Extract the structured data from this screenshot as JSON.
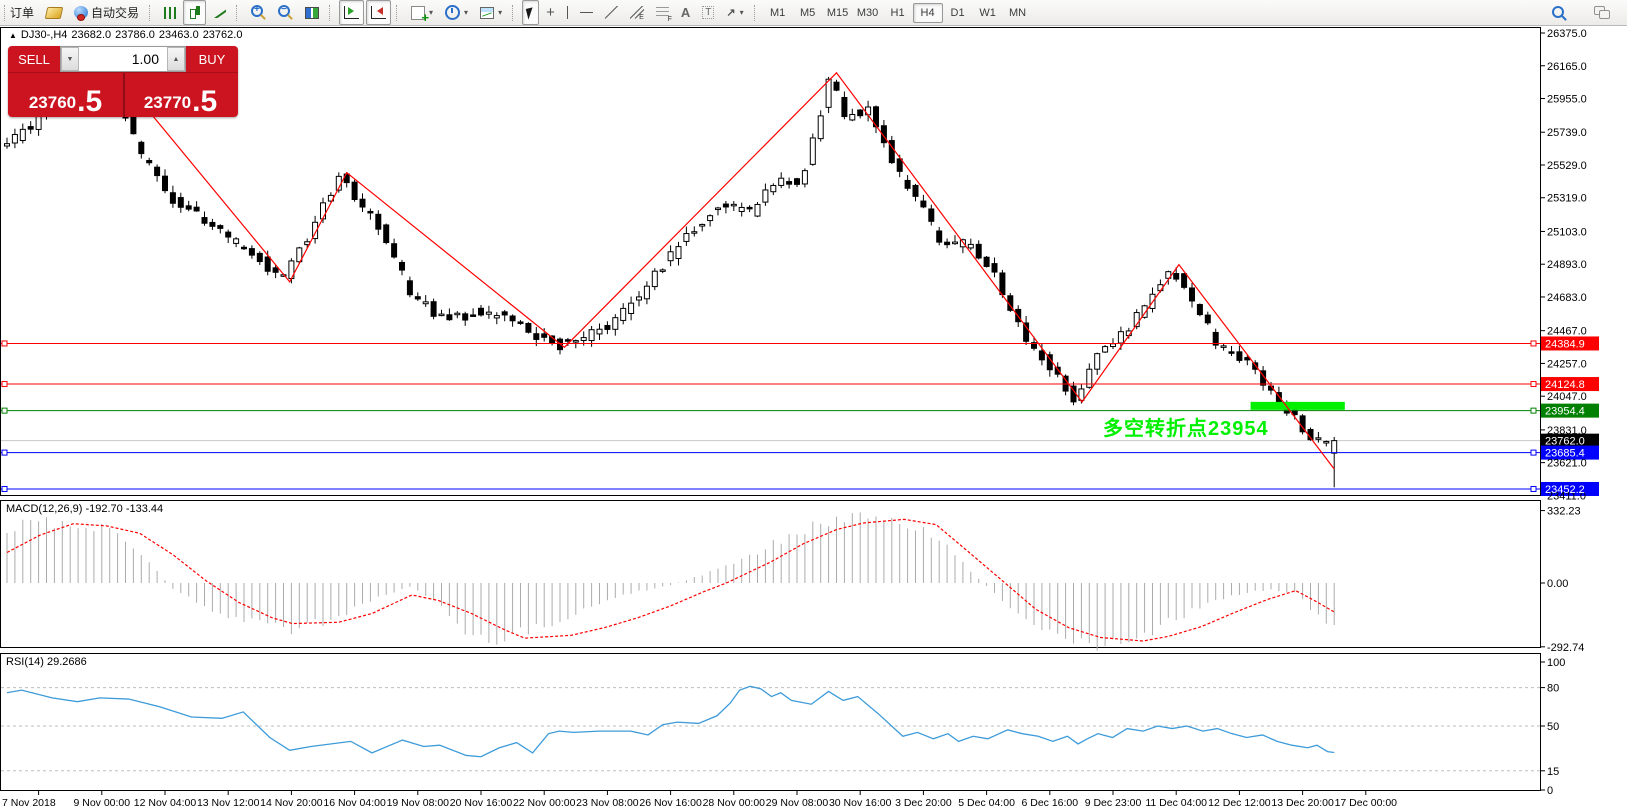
{
  "toolbar": {
    "groups": [
      {
        "name": "file-group",
        "items": [
          {
            "name": "new-order-button",
            "label": "订单",
            "cut": true
          },
          {
            "name": "market-watch-button",
            "glyph": "gold"
          },
          {
            "name": "auto-trading-button",
            "glyph": "robot",
            "label": "自动交易"
          }
        ]
      },
      {
        "name": "chart-type-group",
        "items": [
          {
            "name": "bar-chart-button",
            "glyph": "bars"
          },
          {
            "name": "candlestick-button",
            "glyph": "candles",
            "active": true
          },
          {
            "name": "line-chart-button",
            "glyph": "linechart"
          }
        ]
      },
      {
        "name": "zoom-group",
        "items": [
          {
            "name": "zoom-in-button",
            "glyph": "zoomin"
          },
          {
            "name": "zoom-out-button",
            "glyph": "zoomout"
          },
          {
            "name": "tile-windows-button",
            "glyph": "tiles"
          }
        ]
      },
      {
        "name": "scroll-group",
        "items": [
          {
            "name": "auto-scroll-button",
            "glyph": "autoscroll",
            "active": true
          },
          {
            "name": "chart-shift-button",
            "glyph": "chartshift",
            "active": true
          }
        ]
      },
      {
        "name": "insert-group",
        "items": [
          {
            "name": "indicators-button",
            "glyph": "indicators",
            "dropdown": true
          },
          {
            "name": "periods-button",
            "glyph": "clock",
            "dropdown": true
          },
          {
            "name": "templates-button",
            "glyph": "template",
            "dropdown": true
          }
        ]
      },
      {
        "name": "draw-group",
        "items": [
          {
            "name": "cursor-button",
            "glyph": "cursor",
            "active": true
          },
          {
            "name": "crosshair-button",
            "glyph": "crosshair"
          },
          {
            "name": "vertical-line-button",
            "glyph": "vline"
          },
          {
            "name": "horizontal-line-button",
            "glyph": "hline"
          },
          {
            "name": "trendline-button",
            "glyph": "trend"
          },
          {
            "name": "channel-button",
            "glyph": "channel"
          },
          {
            "name": "fibonacci-button",
            "glyph": "fibo"
          },
          {
            "name": "text-button",
            "glyph": "texta"
          },
          {
            "name": "text-label-button",
            "glyph": "label"
          },
          {
            "name": "arrows-button",
            "glyph": "arrows",
            "dropdown": true
          }
        ]
      },
      {
        "name": "timeframe-group",
        "items": [
          {
            "name": "timeframe-m1",
            "label": "M1",
            "tf": true
          },
          {
            "name": "timeframe-m5",
            "label": "M5",
            "tf": true
          },
          {
            "name": "timeframe-m15",
            "label": "M15",
            "tf": true
          },
          {
            "name": "timeframe-m30",
            "label": "M30",
            "tf": true
          },
          {
            "name": "timeframe-h1",
            "label": "H1",
            "tf": true
          },
          {
            "name": "timeframe-h4",
            "label": "H4",
            "tf": true,
            "active": true
          },
          {
            "name": "timeframe-d1",
            "label": "D1",
            "tf": true
          },
          {
            "name": "timeframe-w1",
            "label": "W1",
            "tf": true
          },
          {
            "name": "timeframe-mn",
            "label": "MN",
            "tf": true
          }
        ]
      }
    ],
    "right_items": [
      {
        "name": "search-button",
        "glyph": "search"
      },
      {
        "name": "community-button",
        "glyph": "chat"
      }
    ]
  },
  "one_click_panel": {
    "sell_label": "SELL",
    "buy_label": "BUY",
    "volume": "1.00",
    "sell_price_main": "23760",
    "sell_price_pip": ".5",
    "buy_price_main": "23770",
    "buy_price_pip": ".5",
    "accent_color": "#cb141f"
  },
  "chart_header": {
    "collapse_icon": "▲",
    "symbol_period": "DJ30-,H4",
    "open": "23682.0",
    "high": "23786.0",
    "low": "23463.0",
    "close": "23762.0"
  },
  "indicator_labels": {
    "macd": "MACD(12,26,9) -192.70 -133.44",
    "rsi": "RSI(14) 29.2686"
  },
  "annotation": {
    "text": "多空转折点23954",
    "color": "#00f000"
  },
  "chart_data": {
    "type": "candlestick",
    "symbol": "DJ30-",
    "period": "H4",
    "current_ohlc": {
      "open": 23682.0,
      "high": 23786.0,
      "low": 23463.0,
      "close": 23762.0
    },
    "price_axis": {
      "ticks": [
        26375.0,
        26165.0,
        25955.0,
        25739.0,
        25529.0,
        25319.0,
        25103.0,
        24893.0,
        24683.0,
        24467.0,
        24257.0,
        24047.0,
        23831.0,
        23621.0,
        23411.0
      ],
      "min": 23400,
      "max": 26420
    },
    "time_axis": [
      "7 Nov 2018",
      "9 Nov 00:00",
      "12 Nov 04:00",
      "13 Nov 12:00",
      "14 Nov 20:00",
      "16 Nov 04:00",
      "19 Nov 08:00",
      "20 Nov 16:00",
      "22 Nov 00:00",
      "23 Nov 08:00",
      "26 Nov 16:00",
      "28 Nov 00:00",
      "29 Nov 08:00",
      "30 Nov 16:00",
      "3 Dec 20:00",
      "5 Dec 04:00",
      "6 Dec 16:00",
      "9 Dec 23:00",
      "11 Dec 04:00",
      "12 Dec 12:00",
      "13 Dec 20:00",
      "17 Dec 00:00"
    ],
    "levels": [
      {
        "price": 24384.9,
        "label": "24384.9",
        "color": "#ff0000"
      },
      {
        "price": 24124.8,
        "label": "24124.8",
        "color": "#ff0000"
      },
      {
        "price": 23954.4,
        "label": "23954.4",
        "color": "#008000"
      },
      {
        "price": 23762.0,
        "label": "23762.0",
        "color": "#000000",
        "line_color": "#c8c8c8",
        "bid": true
      },
      {
        "price": 23685.4,
        "label": "23685.4",
        "color": "#0000ff"
      },
      {
        "price": 23452.2,
        "label": "23452.2",
        "color": "#0000ff"
      }
    ],
    "highlight_bar": {
      "f1": 0.937,
      "f2": 1.008,
      "y_price": 23985,
      "thickness_px": 8,
      "color": "#00f000"
    },
    "zigzag": {
      "color": "#ff0000",
      "pivots": [
        [
          0.084,
          26110
        ],
        [
          0.213,
          24780
        ],
        [
          0.256,
          25480
        ],
        [
          0.42,
          24360
        ],
        [
          0.625,
          26120
        ],
        [
          0.81,
          24010
        ],
        [
          0.883,
          24890
        ],
        [
          1,
          23580
        ]
      ]
    },
    "price_path": [
      [
        0,
        25640
      ],
      [
        0.03,
        25830
      ],
      [
        0.084,
        26100
      ],
      [
        0.105,
        25620
      ],
      [
        0.125,
        25340
      ],
      [
        0.155,
        25160
      ],
      [
        0.185,
        24990
      ],
      [
        0.213,
        24790
      ],
      [
        0.232,
        25070
      ],
      [
        0.256,
        25470
      ],
      [
        0.285,
        25130
      ],
      [
        0.31,
        24700
      ],
      [
        0.335,
        24540
      ],
      [
        0.365,
        24590
      ],
      [
        0.395,
        24480
      ],
      [
        0.42,
        24370
      ],
      [
        0.445,
        24440
      ],
      [
        0.465,
        24540
      ],
      [
        0.49,
        24780
      ],
      [
        0.515,
        25050
      ],
      [
        0.545,
        25290
      ],
      [
        0.565,
        25220
      ],
      [
        0.585,
        25450
      ],
      [
        0.605,
        25430
      ],
      [
        0.625,
        26090
      ],
      [
        0.638,
        25830
      ],
      [
        0.655,
        25890
      ],
      [
        0.675,
        25490
      ],
      [
        0.695,
        25270
      ],
      [
        0.71,
        24990
      ],
      [
        0.725,
        25040
      ],
      [
        0.745,
        24900
      ],
      [
        0.765,
        24530
      ],
      [
        0.785,
        24290
      ],
      [
        0.81,
        24030
      ],
      [
        0.83,
        24340
      ],
      [
        0.85,
        24490
      ],
      [
        0.868,
        24690
      ],
      [
        0.883,
        24870
      ],
      [
        0.9,
        24650
      ],
      [
        0.92,
        24340
      ],
      [
        0.94,
        24250
      ],
      [
        0.957,
        24090
      ],
      [
        0.972,
        23950
      ],
      [
        0.985,
        23790
      ],
      [
        1,
        23720
      ]
    ],
    "candles": {
      "count": 169,
      "seed": 11,
      "bull_color": "#ffffff",
      "bear_color": "#000000"
    },
    "macd": {
      "name": "MACD",
      "params": "12,26,9",
      "value": -192.7,
      "signal_value": -133.44,
      "axis_ticks": [
        332.23,
        0.0,
        -292.74
      ],
      "histogram_color": "#ababab",
      "signal_color": "#ff0000",
      "samples": [
        [
          0,
          250,
          140
        ],
        [
          0.025,
          283,
          220
        ],
        [
          0.05,
          282,
          272
        ],
        [
          0.075,
          245,
          262
        ],
        [
          0.1,
          150,
          228
        ],
        [
          0.125,
          -30,
          130
        ],
        [
          0.15,
          -110,
          10
        ],
        [
          0.175,
          -170,
          -90
        ],
        [
          0.2,
          -205,
          -160
        ],
        [
          0.215,
          -210,
          -186
        ],
        [
          0.25,
          -160,
          -180
        ],
        [
          0.275,
          -80,
          -140
        ],
        [
          0.305,
          -15,
          -55
        ],
        [
          0.325,
          -90,
          -80
        ],
        [
          0.35,
          -272,
          -140
        ],
        [
          0.375,
          -250,
          -215
        ],
        [
          0.39,
          -220,
          -253
        ],
        [
          0.425,
          -150,
          -240
        ],
        [
          0.45,
          -80,
          -205
        ],
        [
          0.475,
          -40,
          -160
        ],
        [
          0.5,
          -10,
          -105
        ],
        [
          0.525,
          40,
          -40
        ],
        [
          0.542,
          80,
          0
        ],
        [
          0.575,
          170,
          95
        ],
        [
          0.6,
          240,
          180
        ],
        [
          0.625,
          300,
          245
        ],
        [
          0.645,
          332,
          275
        ],
        [
          0.676,
          290,
          292
        ],
        [
          0.7,
          215,
          268
        ],
        [
          0.725,
          60,
          140
        ],
        [
          0.752,
          -90,
          0
        ],
        [
          0.775,
          -190,
          -120
        ],
        [
          0.8,
          -255,
          -205
        ],
        [
          0.824,
          -283,
          -250
        ],
        [
          0.856,
          -240,
          -266
        ],
        [
          0.875,
          -180,
          -245
        ],
        [
          0.9,
          -110,
          -200
        ],
        [
          0.925,
          -55,
          -135
        ],
        [
          0.95,
          -30,
          -75
        ],
        [
          0.971,
          -45,
          -35
        ],
        [
          0.985,
          -140,
          -80
        ],
        [
          1,
          -193,
          -133
        ]
      ]
    },
    "rsi": {
      "name": "RSI",
      "params": "14",
      "value": 29.2686,
      "axis_ticks": [
        100,
        80,
        50,
        15,
        0
      ],
      "level_lines": [
        80,
        50,
        15
      ],
      "line_color": "#3d9bd9",
      "level_color": "#bdbdbd",
      "points": [
        [
          0,
          76
        ],
        [
          0.011,
          78
        ],
        [
          0.034,
          72
        ],
        [
          0.053,
          69
        ],
        [
          0.07,
          72
        ],
        [
          0.092,
          71
        ],
        [
          0.115,
          65
        ],
        [
          0.139,
          57
        ],
        [
          0.162,
          56
        ],
        [
          0.178,
          61
        ],
        [
          0.198,
          41
        ],
        [
          0.213,
          31
        ],
        [
          0.229,
          34
        ],
        [
          0.259,
          38
        ],
        [
          0.275,
          29
        ],
        [
          0.298,
          39
        ],
        [
          0.314,
          34
        ],
        [
          0.326,
          35
        ],
        [
          0.346,
          27
        ],
        [
          0.357,
          26
        ],
        [
          0.371,
          33
        ],
        [
          0.384,
          37
        ],
        [
          0.396,
          29
        ],
        [
          0.408,
          44
        ],
        [
          0.416,
          46
        ],
        [
          0.427,
          45
        ],
        [
          0.446,
          46
        ],
        [
          0.47,
          46
        ],
        [
          0.483,
          43
        ],
        [
          0.494,
          51
        ],
        [
          0.505,
          53
        ],
        [
          0.521,
          52
        ],
        [
          0.535,
          58
        ],
        [
          0.545,
          68
        ],
        [
          0.552,
          78
        ],
        [
          0.56,
          81
        ],
        [
          0.568,
          79
        ],
        [
          0.576,
          73
        ],
        [
          0.583,
          76
        ],
        [
          0.591,
          70
        ],
        [
          0.606,
          67
        ],
        [
          0.619,
          77
        ],
        [
          0.63,
          70
        ],
        [
          0.641,
          73
        ],
        [
          0.656,
          60
        ],
        [
          0.675,
          42
        ],
        [
          0.686,
          45
        ],
        [
          0.698,
          40
        ],
        [
          0.709,
          44
        ],
        [
          0.717,
          38
        ],
        [
          0.728,
          42
        ],
        [
          0.739,
          40
        ],
        [
          0.754,
          47
        ],
        [
          0.765,
          44
        ],
        [
          0.777,
          42
        ],
        [
          0.788,
          38
        ],
        [
          0.799,
          42
        ],
        [
          0.807,
          36
        ],
        [
          0.814,
          40
        ],
        [
          0.822,
          44
        ],
        [
          0.833,
          41
        ],
        [
          0.844,
          48
        ],
        [
          0.856,
          46
        ],
        [
          0.867,
          50
        ],
        [
          0.878,
          48
        ],
        [
          0.889,
          50
        ],
        [
          0.901,
          46
        ],
        [
          0.912,
          48
        ],
        [
          0.923,
          44
        ],
        [
          0.934,
          41
        ],
        [
          0.946,
          43
        ],
        [
          0.957,
          38
        ],
        [
          0.968,
          35
        ],
        [
          0.98,
          33
        ],
        [
          0.987,
          35
        ],
        [
          0.995,
          30
        ],
        [
          1,
          29.27
        ]
      ]
    }
  }
}
